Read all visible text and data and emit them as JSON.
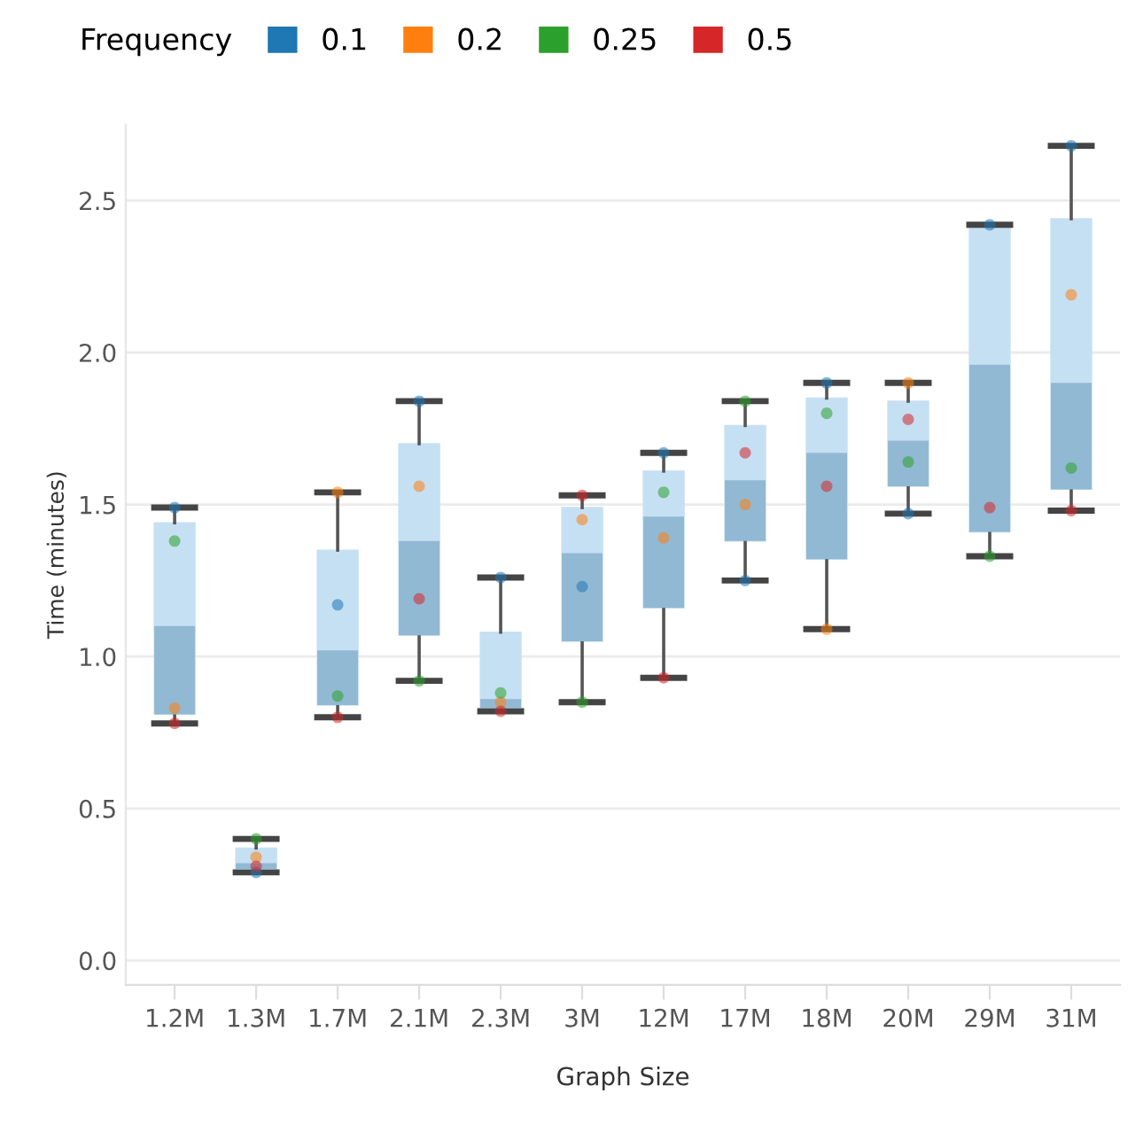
{
  "chart_data": {
    "type": "box",
    "xlabel": "Graph Size",
    "ylabel": "Time (minutes)",
    "legend_title": "Frequency",
    "legend": "top left",
    "categories": [
      "1.2M",
      "1.3M",
      "1.7M",
      "2.1M",
      "2.3M",
      "3M",
      "12M",
      "17M",
      "18M",
      "20M",
      "29M",
      "31M"
    ],
    "boxes": [
      {
        "low": 0.78,
        "q1": 0.81,
        "median": 1.1,
        "q3": 1.44,
        "high": 1.49
      },
      {
        "low": 0.29,
        "q1": 0.3,
        "median": 0.32,
        "q3": 0.37,
        "high": 0.4
      },
      {
        "low": 0.8,
        "q1": 0.84,
        "median": 1.02,
        "q3": 1.35,
        "high": 1.54
      },
      {
        "low": 0.92,
        "q1": 1.07,
        "median": 1.38,
        "q3": 1.7,
        "high": 1.84
      },
      {
        "low": 0.82,
        "q1": 0.83,
        "median": 0.86,
        "q3": 1.08,
        "high": 1.26
      },
      {
        "low": 0.85,
        "q1": 1.05,
        "median": 1.34,
        "q3": 1.49,
        "high": 1.53
      },
      {
        "low": 0.93,
        "q1": 1.16,
        "median": 1.46,
        "q3": 1.61,
        "high": 1.67
      },
      {
        "low": 1.25,
        "q1": 1.38,
        "median": 1.58,
        "q3": 1.76,
        "high": 1.84
      },
      {
        "low": 1.09,
        "q1": 1.32,
        "median": 1.67,
        "q3": 1.85,
        "high": 1.9
      },
      {
        "low": 1.47,
        "q1": 1.56,
        "median": 1.71,
        "q3": 1.84,
        "high": 1.9
      },
      {
        "low": 1.33,
        "q1": 1.41,
        "median": 1.96,
        "q3": 2.42,
        "high": 2.42
      },
      {
        "low": 1.48,
        "q1": 1.55,
        "median": 1.9,
        "q3": 2.44,
        "high": 2.68
      }
    ],
    "series": [
      {
        "name": "0.1",
        "type": "scatter",
        "color": "#1f77b4",
        "x": [
          "1.2M",
          "1.3M",
          "1.7M",
          "2.1M",
          "2.3M",
          "3M",
          "12M",
          "17M",
          "18M",
          "20M",
          "29M",
          "31M"
        ],
        "values": [
          1.49,
          0.29,
          1.17,
          1.84,
          1.26,
          1.23,
          1.67,
          1.25,
          1.9,
          1.47,
          2.42,
          2.68
        ]
      },
      {
        "name": "0.2",
        "type": "scatter",
        "color": "#ff7f0e",
        "x": [
          "1.2M",
          "1.3M",
          "1.7M",
          "2.1M",
          "2.3M",
          "3M",
          "12M",
          "17M",
          "18M",
          "20M",
          "29M",
          "31M"
        ],
        "values": [
          0.83,
          0.34,
          1.54,
          1.56,
          0.85,
          1.45,
          1.39,
          1.5,
          1.09,
          1.9,
          null,
          2.19
        ]
      },
      {
        "name": "0.25",
        "type": "scatter",
        "color": "#2ca02c",
        "x": [
          "1.2M",
          "1.3M",
          "1.7M",
          "2.1M",
          "2.3M",
          "3M",
          "12M",
          "17M",
          "18M",
          "20M",
          "29M",
          "31M"
        ],
        "values": [
          1.38,
          0.4,
          0.87,
          0.92,
          0.88,
          0.85,
          1.54,
          1.84,
          1.8,
          1.64,
          1.33,
          1.62
        ]
      },
      {
        "name": "0.5",
        "type": "scatter",
        "color": "#d62728",
        "x": [
          "1.2M",
          "1.3M",
          "1.7M",
          "2.1M",
          "2.3M",
          "3M",
          "12M",
          "17M",
          "18M",
          "20M",
          "29M",
          "31M"
        ],
        "values": [
          0.78,
          0.31,
          0.8,
          1.19,
          0.82,
          1.53,
          0.93,
          1.67,
          1.56,
          1.78,
          1.49,
          1.48
        ]
      }
    ],
    "ylim": [
      -0.08,
      2.75
    ],
    "yticks": [
      {
        "value": 0,
        "label": "0.0"
      },
      0.5,
      {
        "value": 1,
        "label": "1.0"
      },
      1.5,
      {
        "value": 2,
        "label": "2.0"
      },
      2.5
    ],
    "grid": "y",
    "marker": "circle"
  }
}
